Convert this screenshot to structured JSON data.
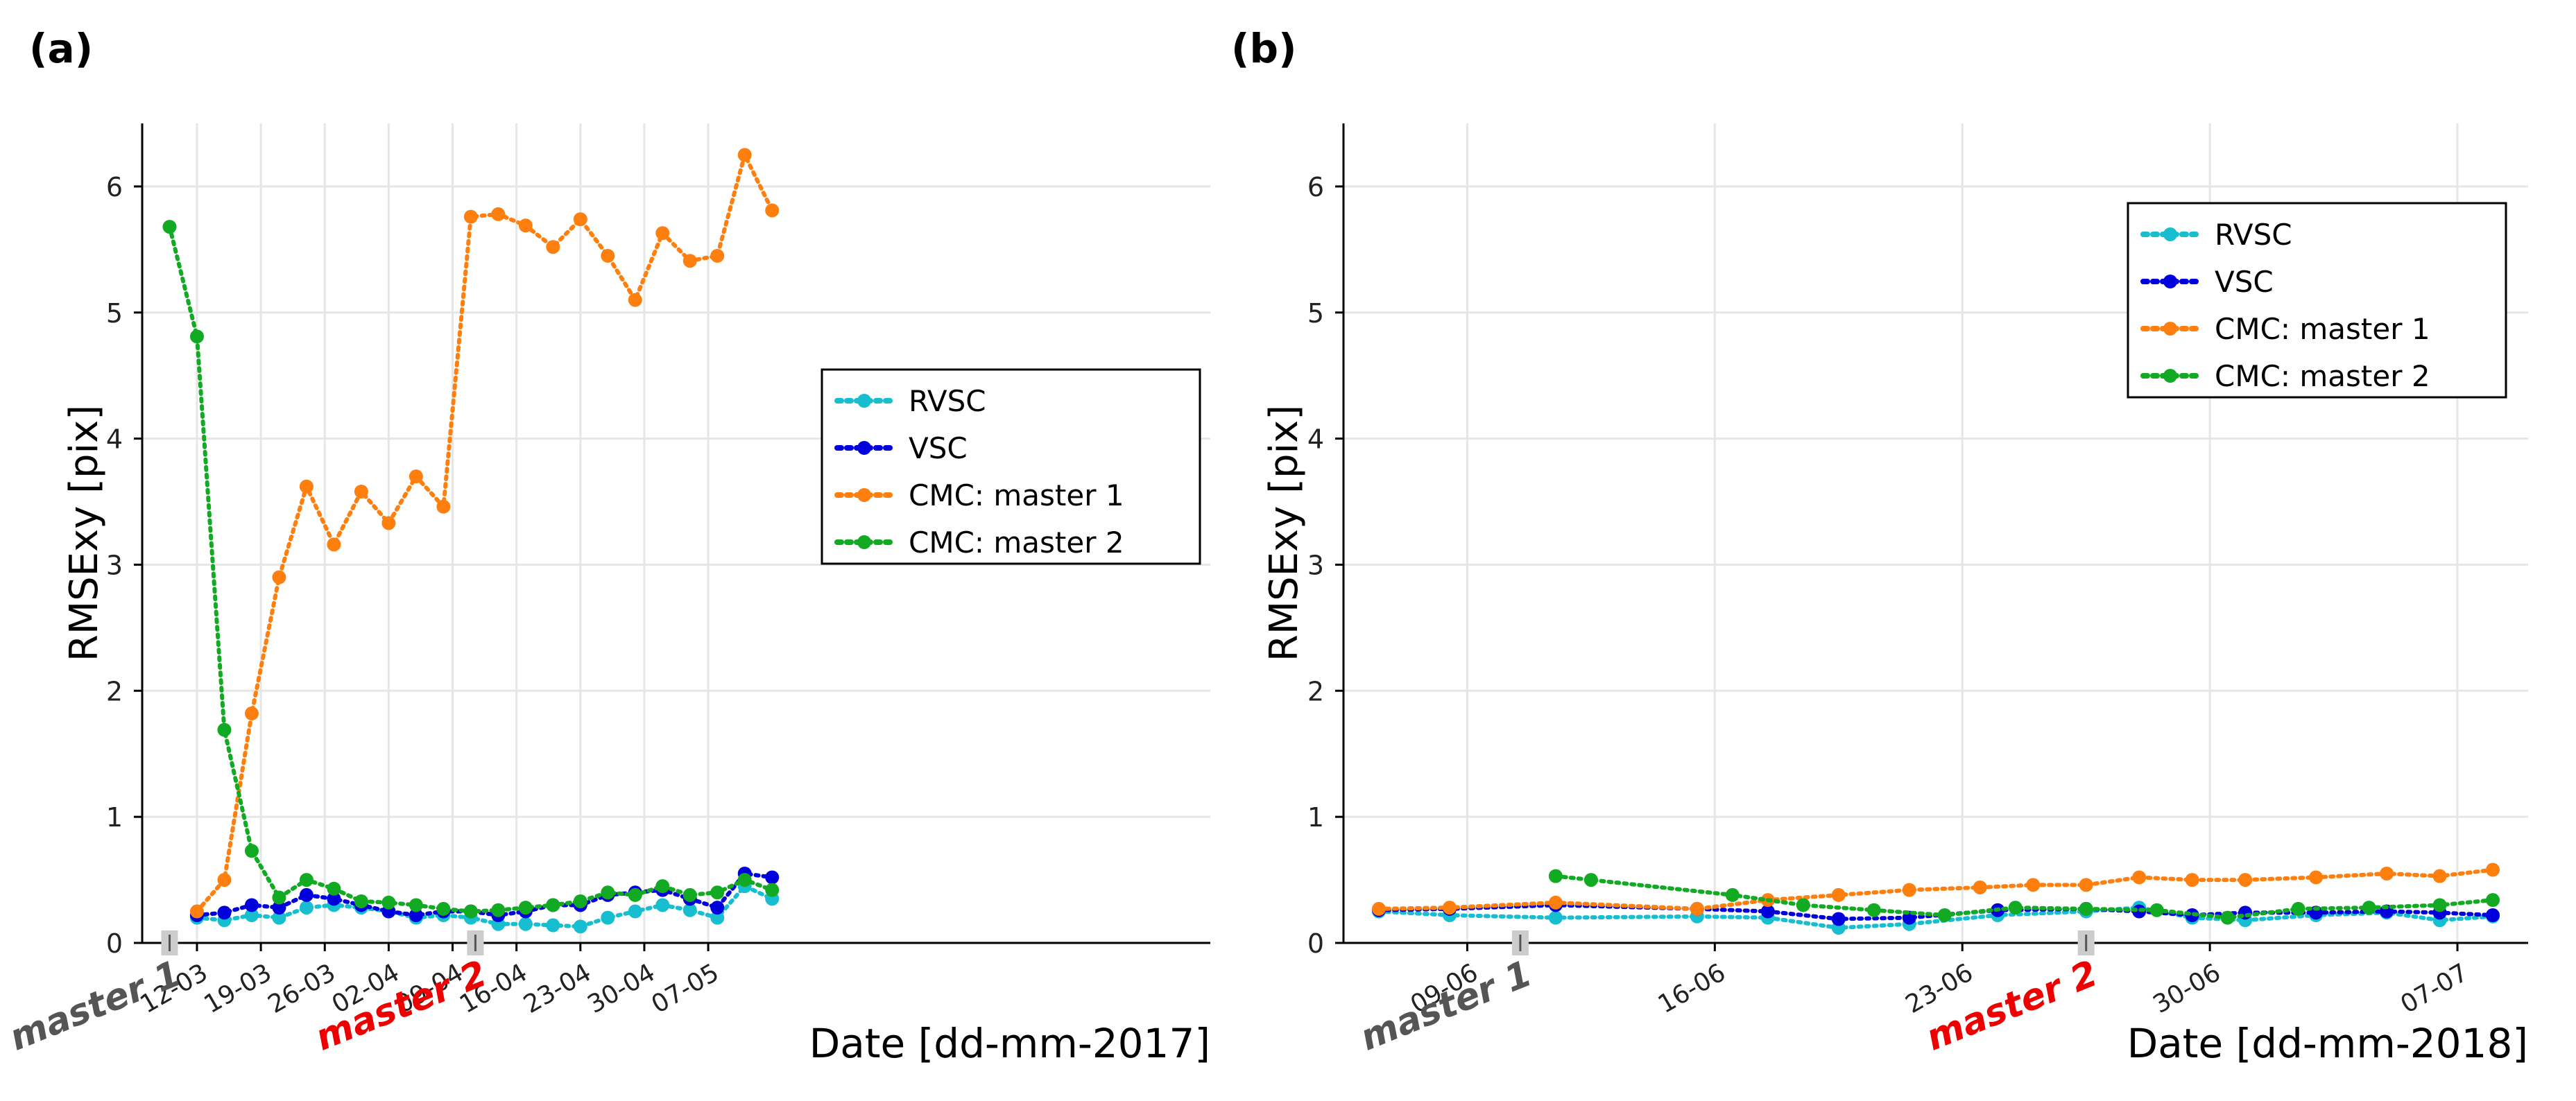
{
  "chart_data": [
    {
      "type": "line",
      "panel_label": "(a)",
      "xlabel": "Date [dd-mm-2017]",
      "ylabel": "RMSExy [pix]",
      "x_unit": "day_of_year_2017",
      "xlim": [
        65,
        182
      ],
      "ylim": [
        0,
        6.5
      ],
      "yticks": [
        0,
        1,
        2,
        3,
        4,
        5,
        6
      ],
      "xticks": [
        {
          "label": "12-03",
          "x": 71
        },
        {
          "label": "19-03",
          "x": 78
        },
        {
          "label": "26-03",
          "x": 85
        },
        {
          "label": "02-04",
          "x": 92
        },
        {
          "label": "09-04",
          "x": 99
        },
        {
          "label": "16-04",
          "x": 106
        },
        {
          "label": "23-04",
          "x": 113
        },
        {
          "label": "30-04",
          "x": 120
        },
        {
          "label": "07-05",
          "x": 127
        }
      ],
      "markers": [
        {
          "label": "master 1",
          "x": 68,
          "color": "#555555"
        },
        {
          "label": "master 2",
          "x": 101.5,
          "color": "#ee0000"
        }
      ],
      "legend": {
        "position": "center-right"
      },
      "grid": true,
      "series": [
        {
          "name": "RVSC",
          "color": "#17becf",
          "x": [
            71,
            74,
            77,
            80,
            83,
            86,
            89,
            92,
            95,
            98,
            101,
            104,
            107,
            110,
            113,
            116,
            119,
            122,
            125,
            128,
            131,
            134
          ],
          "y": [
            0.2,
            0.18,
            0.22,
            0.2,
            0.28,
            0.3,
            0.28,
            0.25,
            0.2,
            0.22,
            0.2,
            0.15,
            0.15,
            0.14,
            0.13,
            0.2,
            0.25,
            0.3,
            0.26,
            0.2,
            0.45,
            0.35
          ]
        },
        {
          "name": "VSC",
          "color": "#0000dd",
          "x": [
            71,
            74,
            77,
            80,
            83,
            86,
            89,
            92,
            95,
            98,
            101,
            104,
            107,
            110,
            113,
            116,
            119,
            122,
            125,
            128,
            131,
            134
          ],
          "y": [
            0.22,
            0.24,
            0.3,
            0.28,
            0.38,
            0.35,
            0.3,
            0.25,
            0.22,
            0.25,
            0.25,
            0.22,
            0.25,
            0.3,
            0.3,
            0.38,
            0.4,
            0.42,
            0.35,
            0.28,
            0.55,
            0.52
          ]
        },
        {
          "name": "CMC: master 1",
          "color": "#ff7f0e",
          "x": [
            71,
            74,
            77,
            80,
            83,
            86,
            89,
            92,
            95,
            98,
            101,
            104,
            107,
            110,
            113,
            116,
            119,
            122,
            125,
            128,
            131,
            134
          ],
          "y": [
            0.25,
            0.5,
            1.82,
            2.9,
            3.62,
            3.16,
            3.58,
            3.33,
            3.7,
            3.46,
            5.76,
            5.78,
            5.69,
            5.52,
            5.74,
            5.45,
            5.1,
            5.63,
            5.41,
            5.45,
            6.25,
            5.81
          ]
        },
        {
          "name": "CMC: master 2",
          "color": "#11aa22",
          "x": [
            68,
            71,
            74,
            77,
            80,
            83,
            86,
            89,
            92,
            95,
            98,
            101,
            104,
            107,
            110,
            113,
            116,
            119,
            122,
            125,
            128,
            131,
            134
          ],
          "y": [
            5.68,
            4.81,
            1.69,
            0.73,
            0.36,
            0.5,
            0.43,
            0.33,
            0.32,
            0.3,
            0.27,
            0.25,
            0.26,
            0.28,
            0.3,
            0.33,
            0.4,
            0.38,
            0.45,
            0.38,
            0.4,
            0.5,
            0.42
          ]
        }
      ]
    },
    {
      "type": "line",
      "panel_label": "(b)",
      "xlabel": "Date [dd-mm-2018]",
      "ylabel": "RMSExy [pix]",
      "x_unit": "day_of_june_2018",
      "xlim": [
        5.5,
        39
      ],
      "ylim": [
        0,
        6.5
      ],
      "yticks": [
        0,
        1,
        2,
        3,
        4,
        5,
        6
      ],
      "xticks": [
        {
          "label": "09-06",
          "x": 9
        },
        {
          "label": "16-06",
          "x": 16
        },
        {
          "label": "23-06",
          "x": 23
        },
        {
          "label": "30-06",
          "x": 30
        },
        {
          "label": "07-07",
          "x": 37
        }
      ],
      "markers": [
        {
          "label": "master 1",
          "x": 10.5,
          "color": "#555555"
        },
        {
          "label": "master 2",
          "x": 26.5,
          "color": "#ee0000"
        }
      ],
      "legend": {
        "position": "top-right"
      },
      "grid": true,
      "series": [
        {
          "name": "RVSC",
          "color": "#17becf",
          "x": [
            6.5,
            8.5,
            11.5,
            15.5,
            17.5,
            19.5,
            21.5,
            24,
            26.5,
            28,
            29.5,
            31,
            33,
            35,
            36.5,
            38
          ],
          "y": [
            0.25,
            0.22,
            0.2,
            0.21,
            0.2,
            0.12,
            0.15,
            0.22,
            0.25,
            0.28,
            0.2,
            0.18,
            0.22,
            0.24,
            0.18,
            0.21
          ]
        },
        {
          "name": "VSC",
          "color": "#0000dd",
          "x": [
            6.5,
            8.5,
            11.5,
            15.5,
            17.5,
            19.5,
            21.5,
            24,
            26.5,
            28,
            29.5,
            31,
            33,
            35,
            36.5,
            38
          ],
          "y": [
            0.26,
            0.27,
            0.3,
            0.27,
            0.25,
            0.19,
            0.2,
            0.26,
            0.27,
            0.25,
            0.22,
            0.24,
            0.24,
            0.25,
            0.24,
            0.22
          ]
        },
        {
          "name": "CMC: master 1",
          "color": "#ff7f0e",
          "x": [
            6.5,
            8.5,
            11.5,
            15.5,
            17.5,
            19.5,
            21.5,
            23.5,
            25,
            26.5,
            28,
            29.5,
            31,
            33,
            35,
            36.5,
            38
          ],
          "y": [
            0.27,
            0.28,
            0.32,
            0.27,
            0.34,
            0.38,
            0.42,
            0.44,
            0.46,
            0.46,
            0.52,
            0.5,
            0.5,
            0.52,
            0.55,
            0.53,
            0.58
          ]
        },
        {
          "name": "CMC: master 2",
          "color": "#11aa22",
          "x": [
            11.5,
            12.5,
            16.5,
            18.5,
            20.5,
            22.5,
            24.5,
            26.5,
            28.5,
            30.5,
            32.5,
            34.5,
            36.5,
            38
          ],
          "y": [
            0.53,
            0.5,
            0.38,
            0.3,
            0.26,
            0.22,
            0.28,
            0.27,
            0.26,
            0.2,
            0.27,
            0.28,
            0.3,
            0.34
          ]
        }
      ]
    }
  ]
}
